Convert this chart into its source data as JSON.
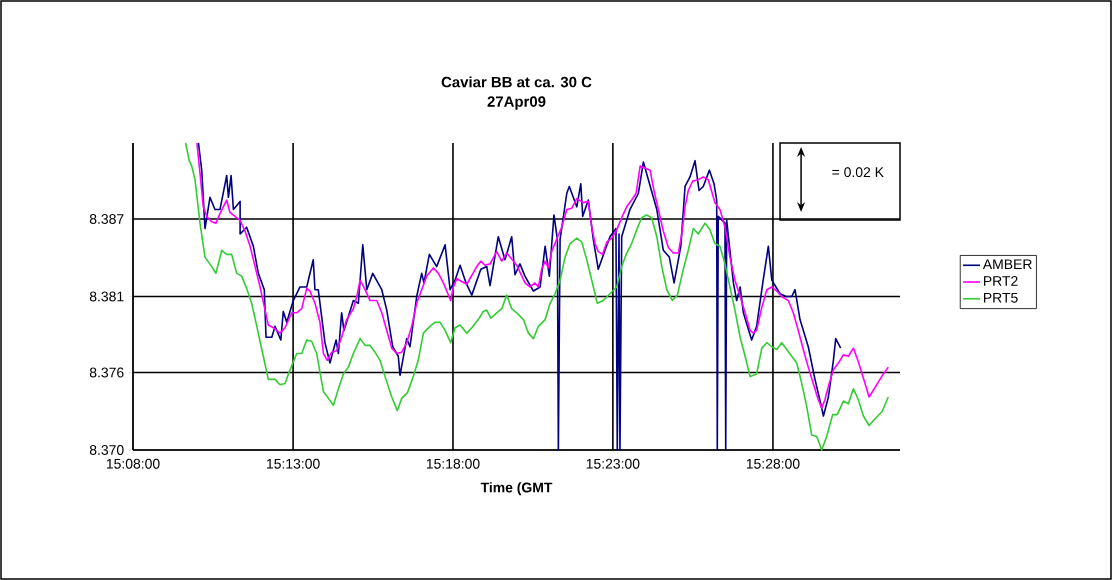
{
  "chart_data": {
    "type": "line",
    "title": "Caviar BB at ca. 30 C",
    "subtitle": "27Apr09",
    "xlabel": "Time (GMT",
    "annotations": [
      "= 0.02 K"
    ],
    "xlim": [
      15.1333,
      15.5329
    ],
    "ylim": [
      8.37,
      8.3926
    ],
    "xticks": [
      {
        "value": 15.1333,
        "label": "15:08:00"
      },
      {
        "value": 15.2167,
        "label": "15:13:00"
      },
      {
        "value": 15.3,
        "label": "15:18:00"
      },
      {
        "value": 15.3833,
        "label": "15:23:00"
      },
      {
        "value": 15.4667,
        "label": "15:28:00"
      }
    ],
    "yticks": [
      {
        "value": 8.37,
        "label": "8.370"
      },
      {
        "value": 8.3757,
        "label": "8.376"
      },
      {
        "value": 8.3813,
        "label": "8.381"
      },
      {
        "value": 8.387,
        "label": "8.387"
      }
    ],
    "grid": true,
    "legend": "right",
    "line_style": "solid",
    "series": [
      {
        "name": "AMBER",
        "color": "#000080",
        "x": [
          15.1674,
          15.1691,
          15.1708,
          15.1734,
          15.176,
          15.1786,
          15.1821,
          15.183,
          15.1844,
          15.1856,
          15.1891,
          15.1891,
          15.1925,
          15.196,
          15.1986,
          15.2017,
          15.2026,
          15.2056,
          15.2073,
          15.2103,
          15.2116,
          15.2134,
          15.2168,
          15.2203,
          15.2238,
          15.2272,
          15.2281,
          15.2298,
          15.2333,
          15.2359,
          15.2391,
          15.2403,
          15.242,
          15.2432,
          15.2481,
          15.2507,
          15.253,
          15.2551,
          15.2582,
          15.2629,
          15.2655,
          15.2686,
          15.2715,
          15.2724,
          15.2759,
          15.2776,
          15.2811,
          15.2837,
          15.2849,
          15.2877,
          15.2915,
          15.2959,
          15.2985,
          15.3011,
          15.3037,
          15.3068,
          15.3098,
          15.3145,
          15.3176,
          15.3193,
          15.3236,
          15.3271,
          15.3306,
          15.3323,
          15.3349,
          15.3375,
          15.3419,
          15.3454,
          15.348,
          15.3502,
          15.3526,
          15.3544,
          15.3549,
          15.3558,
          15.3593,
          15.3606,
          15.3645,
          15.3666,
          15.3676,
          15.3705,
          15.3731,
          15.3757,
          15.3792,
          15.3818,
          15.3849,
          15.3856,
          15.3865,
          15.387,
          15.3879,
          15.3922,
          15.3966,
          15.3992,
          15.4018,
          15.4062,
          15.4096,
          15.4127,
          15.4152,
          15.4187,
          15.4209,
          15.4235,
          15.4261,
          15.4282,
          15.4304,
          15.4336,
          15.436,
          15.4374,
          15.4377,
          15.4382,
          15.4417,
          15.4421,
          15.4426,
          15.4461,
          15.4478,
          15.4496,
          15.4513,
          15.4556,
          15.4582,
          15.4614,
          15.4643,
          15.4661,
          15.4704,
          15.4735,
          15.4765,
          15.4782,
          15.4808,
          15.4851,
          15.4886,
          15.4916,
          15.493,
          15.4956,
          15.4982,
          15.4994,
          15.502
        ],
        "values": [
          8.3926,
          8.3906,
          8.3863,
          8.3886,
          8.3877,
          8.3877,
          8.3902,
          8.3886,
          8.3902,
          8.3877,
          8.3883,
          8.3859,
          8.3864,
          8.385,
          8.383,
          8.3818,
          8.3783,
          8.3783,
          8.3791,
          8.3781,
          8.3802,
          8.3794,
          8.381,
          8.382,
          8.382,
          8.384,
          8.3818,
          8.3818,
          8.3779,
          8.3764,
          8.3781,
          8.3771,
          8.3801,
          8.3788,
          8.381,
          8.3808,
          8.3851,
          8.3818,
          8.383,
          8.3818,
          8.3803,
          8.3776,
          8.3769,
          8.3755,
          8.3782,
          8.3776,
          8.3813,
          8.383,
          8.3823,
          8.3844,
          8.3835,
          8.3851,
          8.3818,
          8.3825,
          8.3836,
          8.3823,
          8.3814,
          8.3833,
          8.3835,
          8.3821,
          8.3857,
          8.384,
          8.3857,
          8.3829,
          8.3837,
          8.3828,
          8.3817,
          8.382,
          8.385,
          8.3828,
          8.3873,
          8.3855,
          8.37,
          8.3855,
          8.3889,
          8.3894,
          8.3879,
          8.3896,
          8.3872,
          8.3884,
          8.3855,
          8.3833,
          8.3847,
          8.3857,
          8.3863,
          8.37,
          8.3859,
          8.37,
          8.3857,
          8.3877,
          8.3889,
          8.3912,
          8.3899,
          8.3877,
          8.3847,
          8.3842,
          8.3823,
          8.385,
          8.3894,
          8.3901,
          8.3913,
          8.3891,
          8.3894,
          8.3906,
          8.3896,
          8.3884,
          8.37,
          8.3872,
          8.3867,
          8.37,
          8.3869,
          8.3823,
          8.381,
          8.382,
          8.3801,
          8.3781,
          8.3791,
          8.3823,
          8.385,
          8.3825,
          8.3815,
          8.3813,
          8.3813,
          8.3818,
          8.3796,
          8.3776,
          8.3752,
          8.3734,
          8.3725,
          8.3739,
          8.3766,
          8.3782,
          8.3775
        ]
      },
      {
        "name": "PRT2",
        "color": "#ff00ff",
        "x": [
          15.1666,
          15.1682,
          15.1699,
          15.1717,
          15.1743,
          15.1765,
          15.1786,
          15.1821,
          15.1838,
          15.1891,
          15.1917,
          15.1943,
          15.1969,
          15.1995,
          15.2021,
          15.2038,
          15.2064,
          15.2099,
          15.2125,
          15.216,
          15.2186,
          15.2212,
          15.2238,
          15.2255,
          15.2281,
          15.2307,
          15.2325,
          15.2345,
          15.2368,
          15.2394,
          15.242,
          15.2446,
          15.2481,
          15.2499,
          15.2516,
          15.2542,
          15.2568,
          15.2603,
          15.2629,
          15.2655,
          15.2681,
          15.2707,
          15.2733,
          15.2759,
          15.2785,
          15.2811,
          15.2837,
          15.2863,
          15.2898,
          15.2924,
          15.295,
          15.2988,
          15.3002,
          15.302,
          15.3072,
          15.3124,
          15.3145,
          15.3167,
          15.3193,
          15.3228,
          15.3254,
          15.328,
          15.3332,
          15.3349,
          15.3375,
          15.3401,
          15.3427,
          15.3445,
          15.3462,
          15.348,
          15.3497,
          15.3514,
          15.354,
          15.3566,
          15.3593,
          15.3619,
          15.3645,
          15.3679,
          15.3705,
          15.3723,
          15.374,
          15.3757,
          15.378,
          15.3801,
          15.3827,
          15.3853,
          15.3879,
          15.3905,
          15.3931,
          15.3954,
          15.3975,
          15.4027,
          15.4047,
          15.407,
          15.4096,
          15.4122,
          15.4148,
          15.4174,
          15.4192,
          15.4209,
          15.4226,
          15.4249,
          15.4278,
          15.4304,
          15.433,
          15.4365,
          15.4391,
          15.4417,
          15.4443,
          15.4469,
          15.4496,
          15.4522,
          15.4548,
          15.4565,
          15.4582,
          15.4609,
          15.4635,
          15.4661,
          15.4687,
          15.4713,
          15.4747,
          15.4773,
          15.4799,
          15.4825,
          15.4851,
          15.4877,
          15.4903,
          15.4921,
          15.4938,
          15.4956,
          15.4982,
          15.5008,
          15.5034,
          15.506,
          15.5086,
          15.5112,
          15.5138,
          15.5168,
          15.519,
          15.5216,
          15.5242,
          15.5268
        ],
        "values": [
          8.3926,
          8.3904,
          8.3879,
          8.3872,
          8.3868,
          8.3867,
          8.3874,
          8.3884,
          8.3875,
          8.3869,
          8.3861,
          8.385,
          8.3835,
          8.382,
          8.3803,
          8.3792,
          8.379,
          8.3786,
          8.379,
          8.3801,
          8.3801,
          8.3804,
          8.3819,
          8.3817,
          8.3808,
          8.3794,
          8.3771,
          8.3766,
          8.3772,
          8.3773,
          8.3783,
          8.3796,
          8.3804,
          8.3813,
          8.3825,
          8.3818,
          8.381,
          8.381,
          8.3801,
          8.3788,
          8.3775,
          8.3771,
          8.3772,
          8.3779,
          8.3791,
          8.3808,
          8.3818,
          8.3828,
          8.3834,
          8.383,
          8.3823,
          8.381,
          8.382,
          8.3826,
          8.3822,
          8.3835,
          8.3839,
          8.3836,
          8.3837,
          8.3846,
          8.3839,
          8.3845,
          8.3836,
          8.3831,
          8.3823,
          8.382,
          8.3823,
          8.382,
          8.3833,
          8.3839,
          8.3834,
          8.3846,
          8.3855,
          8.3864,
          8.3877,
          8.3878,
          8.3885,
          8.3882,
          8.3883,
          8.3864,
          8.3852,
          8.3846,
          8.3844,
          8.3853,
          8.3856,
          8.3862,
          8.3871,
          8.3879,
          8.3884,
          8.3889,
          8.3909,
          8.3906,
          8.3891,
          8.3877,
          8.3861,
          8.3849,
          8.3845,
          8.3845,
          8.3859,
          8.3879,
          8.3891,
          8.3898,
          8.3899,
          8.3901,
          8.3899,
          8.3882,
          8.3877,
          8.3864,
          8.3842,
          8.3825,
          8.3813,
          8.3801,
          8.3788,
          8.3786,
          8.3788,
          8.3805,
          8.3818,
          8.382,
          8.3817,
          8.3813,
          8.381,
          8.3801,
          8.3788,
          8.3774,
          8.3761,
          8.3749,
          8.3737,
          8.3731,
          8.3737,
          8.3747,
          8.3759,
          8.3764,
          8.377,
          8.3769,
          8.3775,
          8.3765,
          8.3753,
          8.3739,
          8.3744,
          8.375,
          8.3756,
          8.3761
        ]
      },
      {
        "name": "PRT5",
        "color": "#33cc33",
        "x": [
          15.1607,
          15.1626,
          15.1639,
          15.1656,
          15.1682,
          15.1708,
          15.1743,
          15.1765,
          15.1795,
          15.1821,
          15.1847,
          15.1873,
          15.1899,
          15.1925,
          15.1951,
          15.1978,
          15.2004,
          15.2038,
          15.2073,
          15.2099,
          15.2125,
          15.2151,
          15.2186,
          15.2212,
          15.2238,
          15.2264,
          15.229,
          15.2325,
          15.2351,
          15.2377,
          15.2403,
          15.2429,
          15.2455,
          15.2481,
          15.2516,
          15.2542,
          15.2568,
          15.2594,
          15.262,
          15.2646,
          15.2681,
          15.271,
          15.2733,
          15.2762,
          15.2793,
          15.2819,
          15.2846,
          15.288,
          15.2906,
          15.2933,
          15.2959,
          15.2988,
          15.3011,
          15.3037,
          15.3072,
          15.3098,
          15.3132,
          15.3158,
          15.3176,
          15.3197,
          15.3228,
          15.3254,
          15.328,
          15.3306,
          15.3332,
          15.3367,
          15.3393,
          15.3419,
          15.3445,
          15.348,
          15.3506,
          15.3532,
          15.3558,
          15.3584,
          15.361,
          15.3645,
          15.3671,
          15.3697,
          15.3723,
          15.3752,
          15.3783,
          15.3818,
          15.3853,
          15.3879,
          15.3905,
          15.3931,
          15.3957,
          15.3983,
          15.4009,
          15.4035,
          15.4062,
          15.4088,
          15.4114,
          15.4143,
          15.4169,
          15.42,
          15.4226,
          15.4252,
          15.4278,
          15.4313,
          15.4339,
          15.4365,
          15.4391,
          15.4417,
          15.4443,
          15.4469,
          15.4496,
          15.4522,
          15.4548,
          15.4582,
          15.4609,
          15.4635,
          15.4661,
          15.4687,
          15.4713,
          15.4739,
          15.4765,
          15.4791,
          15.4817,
          15.4843,
          15.4869,
          15.4895,
          15.4921,
          15.4947,
          15.4978,
          15.5002,
          15.5034,
          15.506,
          15.5086,
          15.5112,
          15.5138,
          15.5168,
          15.5199,
          15.5234,
          15.5268
        ],
        "values": [
          8.3926,
          8.3913,
          8.3909,
          8.3899,
          8.3867,
          8.3842,
          8.3835,
          8.383,
          8.3847,
          8.3844,
          8.3844,
          8.383,
          8.3828,
          8.3819,
          8.3808,
          8.3791,
          8.3774,
          8.3752,
          8.3752,
          8.3748,
          8.3749,
          8.3759,
          8.3771,
          8.3771,
          8.3781,
          8.378,
          8.3771,
          8.3743,
          8.3738,
          8.3733,
          8.3745,
          8.3756,
          8.3761,
          8.3771,
          8.3782,
          8.3777,
          8.3777,
          8.3772,
          8.3766,
          8.3754,
          8.3739,
          8.3729,
          8.3738,
          8.3742,
          8.3754,
          8.3766,
          8.3786,
          8.3791,
          8.3794,
          8.3794,
          8.3788,
          8.3779,
          8.379,
          8.3792,
          8.3786,
          8.379,
          8.3796,
          8.3802,
          8.3803,
          8.3797,
          8.3801,
          8.3804,
          8.3814,
          8.3804,
          8.3801,
          8.3796,
          8.3786,
          8.3782,
          8.3791,
          8.3796,
          8.3808,
          8.3815,
          8.3825,
          8.3842,
          8.3852,
          8.3856,
          8.3853,
          8.384,
          8.3825,
          8.3808,
          8.381,
          8.3815,
          8.382,
          8.3835,
          8.3845,
          8.3852,
          8.3862,
          8.3871,
          8.3873,
          8.3871,
          8.3857,
          8.3835,
          8.3818,
          8.381,
          8.3814,
          8.3833,
          8.3847,
          8.3863,
          8.3859,
          8.3867,
          8.3862,
          8.3852,
          8.385,
          8.3837,
          8.382,
          8.3803,
          8.3783,
          8.3769,
          8.3754,
          8.3756,
          8.3775,
          8.3779,
          8.3776,
          8.3774,
          8.3779,
          8.3774,
          8.3769,
          8.3764,
          8.3749,
          8.3732,
          8.3711,
          8.371,
          8.37,
          8.371,
          8.3726,
          8.3726,
          8.3736,
          8.3734,
          8.3745,
          8.3737,
          8.3725,
          8.3718,
          8.3723,
          8.3728,
          8.3739
        ]
      }
    ]
  }
}
